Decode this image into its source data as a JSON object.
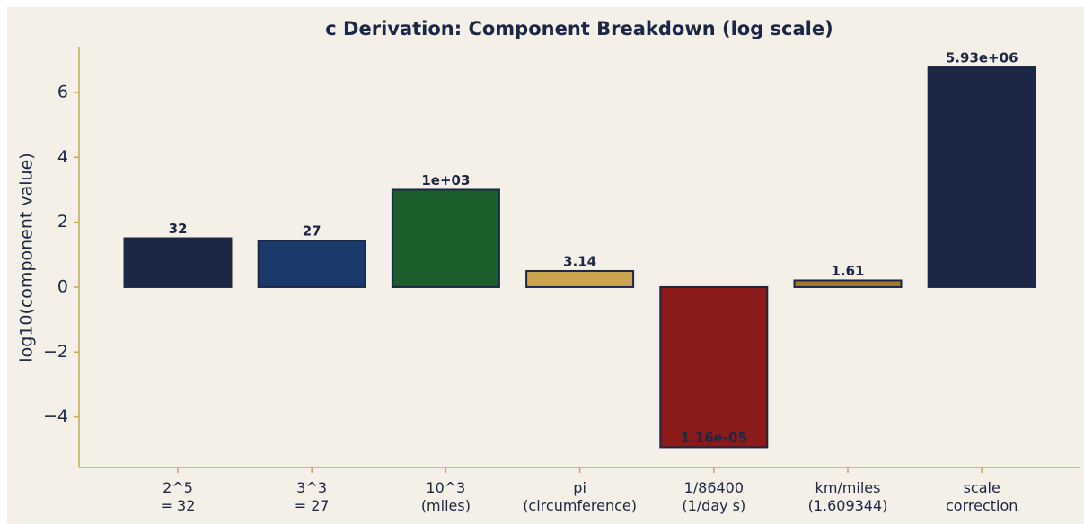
{
  "chart_data": {
    "type": "bar",
    "title": "c Derivation: Component Breakdown (log scale)",
    "ylabel": "log10(component value)",
    "categories": [
      "2^5\n= 32",
      "3^3\n= 27",
      "10^3\n(miles)",
      "pi\n(circumference)",
      "1/86400\n(1/day s)",
      "km/miles\n(1.609344)",
      "scale\ncorrection"
    ],
    "values": [
      1.5051,
      1.4314,
      3,
      0.4972,
      -4.9355,
      0.2067,
      6.7731
    ],
    "value_labels": [
      "32",
      "27",
      "1e+03",
      "3.14",
      "1.16e-05",
      "1.61",
      "5.93e+06"
    ],
    "colors": [
      "#1b2744",
      "#1a3a6b",
      "#1b5e2b",
      "#c9a54e",
      "#8b1a1a",
      "#a07c28",
      "#1b2744"
    ],
    "edgecolor": "#1b2744",
    "ylim": [
      -5.56,
      7.41
    ],
    "yticks": [
      {
        "value": -4,
        "label": "−4"
      },
      {
        "value": -2,
        "label": "−2"
      },
      0,
      2,
      4,
      6
    ]
  }
}
